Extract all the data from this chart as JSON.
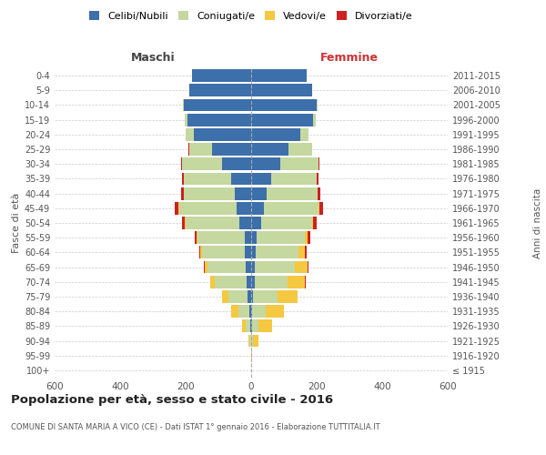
{
  "age_groups": [
    "100+",
    "95-99",
    "90-94",
    "85-89",
    "80-84",
    "75-79",
    "70-74",
    "65-69",
    "60-64",
    "55-59",
    "50-54",
    "45-49",
    "40-44",
    "35-39",
    "30-34",
    "25-29",
    "20-24",
    "15-19",
    "10-14",
    "5-9",
    "0-4"
  ],
  "birth_years": [
    "≤ 1915",
    "1916-1920",
    "1921-1925",
    "1926-1930",
    "1931-1935",
    "1936-1940",
    "1941-1945",
    "1946-1950",
    "1951-1955",
    "1956-1960",
    "1961-1965",
    "1966-1970",
    "1971-1975",
    "1976-1980",
    "1981-1985",
    "1986-1990",
    "1991-1995",
    "1996-2000",
    "2001-2005",
    "2006-2010",
    "2011-2015"
  ],
  "maschi": {
    "celibi": [
      0,
      0,
      1,
      3,
      5,
      10,
      15,
      18,
      20,
      20,
      35,
      45,
      50,
      60,
      90,
      120,
      175,
      195,
      205,
      190,
      180
    ],
    "coniugati": [
      0,
      1,
      4,
      15,
      35,
      60,
      95,
      115,
      130,
      145,
      165,
      175,
      155,
      145,
      120,
      70,
      25,
      8,
      2,
      0,
      0
    ],
    "vedovi": [
      0,
      0,
      2,
      10,
      20,
      20,
      15,
      10,
      5,
      3,
      2,
      1,
      0,
      0,
      0,
      0,
      0,
      0,
      0,
      0,
      0
    ],
    "divorziati": [
      0,
      0,
      0,
      0,
      0,
      0,
      0,
      1,
      2,
      5,
      8,
      12,
      8,
      5,
      3,
      1,
      0,
      0,
      0,
      0,
      0
    ]
  },
  "femmine": {
    "nubili": [
      0,
      0,
      1,
      3,
      4,
      6,
      10,
      12,
      15,
      18,
      30,
      40,
      48,
      60,
      90,
      115,
      150,
      190,
      200,
      185,
      170
    ],
    "coniugate": [
      0,
      0,
      5,
      20,
      40,
      75,
      100,
      120,
      130,
      145,
      155,
      165,
      155,
      140,
      115,
      70,
      25,
      8,
      2,
      0,
      0
    ],
    "vedove": [
      1,
      3,
      15,
      40,
      55,
      60,
      55,
      40,
      20,
      10,
      5,
      2,
      1,
      0,
      0,
      0,
      0,
      0,
      0,
      0,
      0
    ],
    "divorziate": [
      0,
      0,
      0,
      0,
      0,
      1,
      2,
      3,
      5,
      8,
      10,
      12,
      8,
      6,
      3,
      1,
      0,
      0,
      0,
      0,
      0
    ]
  },
  "colors": {
    "celibi": "#3d6faa",
    "coniugati": "#c5d8a0",
    "vedovi": "#f5c842",
    "divorziati": "#cc2222"
  },
  "legend_labels": [
    "Celibi/Nubili",
    "Coniugati/e",
    "Vedovi/e",
    "Divorziati/e"
  ],
  "title": "Popolazione per età, sesso e stato civile - 2016",
  "subtitle": "COMUNE DI SANTA MARIA A VICO (CE) - Dati ISTAT 1° gennaio 2016 - Elaborazione TUTTITALIA.IT",
  "xlabel_left": "Maschi",
  "xlabel_right": "Femmine",
  "ylabel_left": "Fasce di età",
  "ylabel_right": "Anni di nascita",
  "xlim": 600,
  "background_color": "#ffffff"
}
